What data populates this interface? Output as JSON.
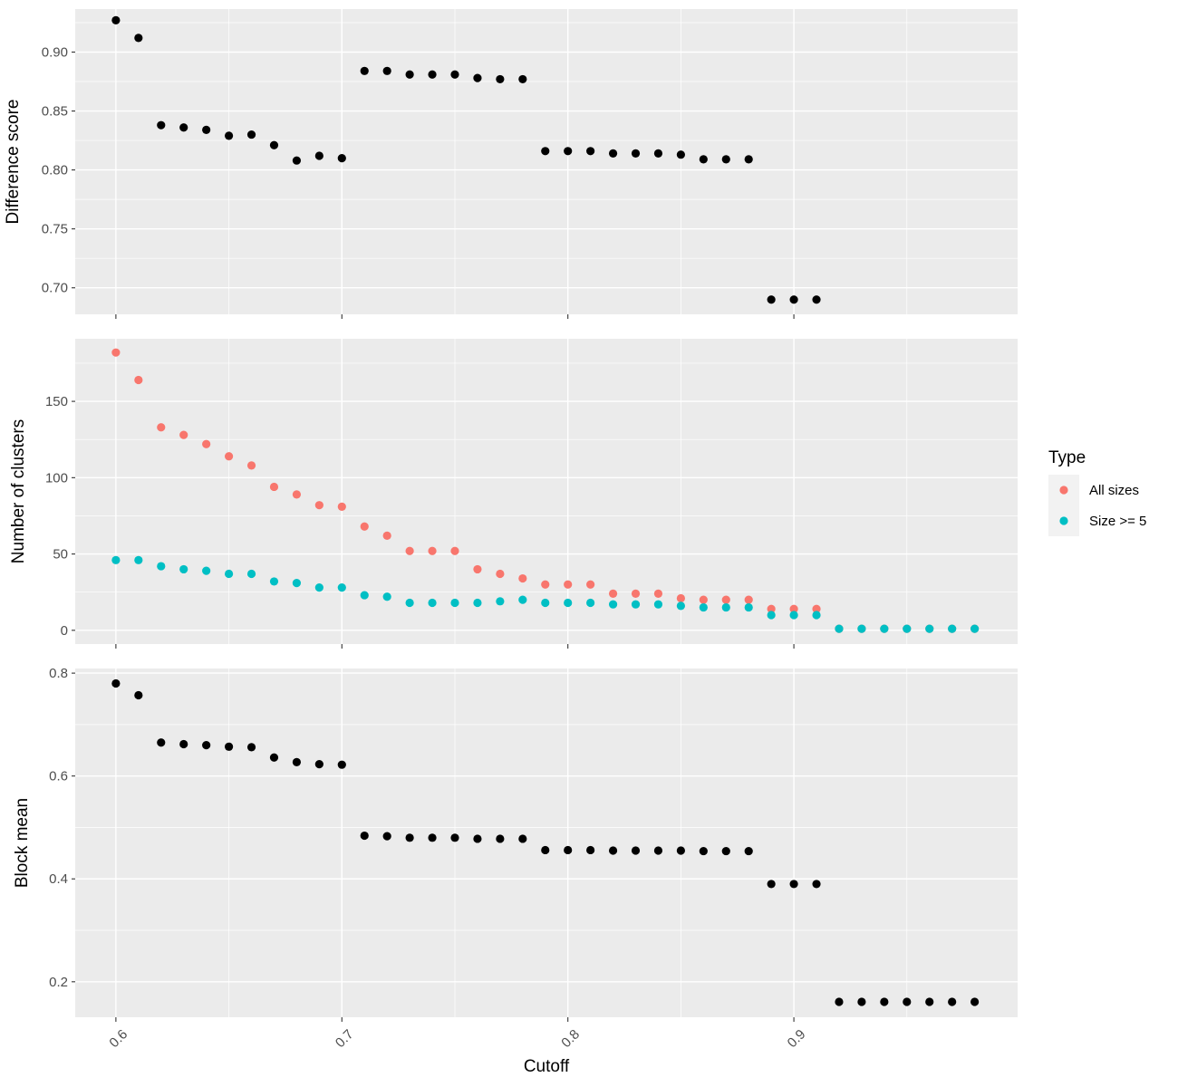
{
  "chart_data": {
    "type": "scatter",
    "xlabel": "Cutoff",
    "x_ticks": [
      0.6,
      0.7,
      0.8,
      0.9
    ],
    "xlim": [
      0.582,
      0.999
    ],
    "colors": {
      "black": "#000000",
      "All sizes": "#F8766D",
      "Size >= 5": "#00BFC4"
    },
    "legend": {
      "title": "Type",
      "position": "right",
      "entries": [
        {
          "label": "All sizes",
          "color": "#F8766D"
        },
        {
          "label": "Size >= 5",
          "color": "#00BFC4"
        }
      ]
    },
    "panels": [
      {
        "ylabel": "Difference score",
        "ylim": [
          0.6775,
          0.9365
        ],
        "y_ticks": [
          0.7,
          0.75,
          0.8,
          0.85,
          0.9
        ],
        "y_tick_labels": [
          "0.70",
          "0.75",
          "0.80",
          "0.85",
          "0.90"
        ],
        "series": [
          {
            "color": "#000000",
            "x": [
              0.6,
              0.61,
              0.62,
              0.63,
              0.64,
              0.65,
              0.66,
              0.67,
              0.68,
              0.69,
              0.7,
              0.71,
              0.72,
              0.73,
              0.74,
              0.75,
              0.76,
              0.77,
              0.78,
              0.79,
              0.8,
              0.81,
              0.82,
              0.83,
              0.84,
              0.85,
              0.86,
              0.87,
              0.88,
              0.89,
              0.9,
              0.91
            ],
            "y": [
              0.927,
              0.912,
              0.838,
              0.836,
              0.834,
              0.829,
              0.83,
              0.821,
              0.808,
              0.812,
              0.81,
              0.884,
              0.884,
              0.881,
              0.881,
              0.881,
              0.878,
              0.877,
              0.877,
              0.816,
              0.816,
              0.816,
              0.814,
              0.814,
              0.814,
              0.813,
              0.809,
              0.809,
              0.809,
              0.69,
              0.69,
              0.69
            ]
          }
        ]
      },
      {
        "ylabel": "Number of clusters",
        "ylim": [
          -9,
          191
        ],
        "y_ticks": [
          0,
          50,
          100,
          150
        ],
        "y_tick_labels": [
          "0",
          "50",
          "100",
          "150"
        ],
        "series": [
          {
            "name": "All sizes",
            "color": "#F8766D",
            "x": [
              0.6,
              0.61,
              0.62,
              0.63,
              0.64,
              0.65,
              0.66,
              0.67,
              0.68,
              0.69,
              0.7,
              0.71,
              0.72,
              0.73,
              0.74,
              0.75,
              0.76,
              0.77,
              0.78,
              0.79,
              0.8,
              0.81,
              0.82,
              0.83,
              0.84,
              0.85,
              0.86,
              0.87,
              0.88,
              0.89,
              0.9,
              0.91,
              0.92,
              0.93,
              0.94,
              0.95,
              0.96,
              0.97,
              0.98
            ],
            "y": [
              182,
              164,
              133,
              128,
              122,
              114,
              108,
              94,
              89,
              82,
              81,
              68,
              62,
              52,
              52,
              52,
              40,
              37,
              34,
              30,
              30,
              30,
              24,
              24,
              24,
              21,
              20,
              20,
              20,
              14,
              14,
              14,
              1,
              1,
              1,
              1,
              1,
              1,
              1
            ]
          },
          {
            "name": "Size >= 5",
            "color": "#00BFC4",
            "x": [
              0.6,
              0.61,
              0.62,
              0.63,
              0.64,
              0.65,
              0.66,
              0.67,
              0.68,
              0.69,
              0.7,
              0.71,
              0.72,
              0.73,
              0.74,
              0.75,
              0.76,
              0.77,
              0.78,
              0.79,
              0.8,
              0.81,
              0.82,
              0.83,
              0.84,
              0.85,
              0.86,
              0.87,
              0.88,
              0.89,
              0.9,
              0.91,
              0.92,
              0.93,
              0.94,
              0.95,
              0.96,
              0.97,
              0.98
            ],
            "y": [
              46,
              46,
              42,
              40,
              39,
              37,
              37,
              32,
              31,
              28,
              28,
              23,
              22,
              18,
              18,
              18,
              18,
              19,
              20,
              18,
              18,
              18,
              17,
              17,
              17,
              16,
              15,
              15,
              15,
              10,
              10,
              10,
              1,
              1,
              1,
              1,
              1,
              1,
              1
            ]
          }
        ]
      },
      {
        "ylabel": "Block mean",
        "ylim": [
          0.131,
          0.809
        ],
        "y_ticks": [
          0.2,
          0.4,
          0.6,
          0.8
        ],
        "y_tick_labels": [
          "0.2",
          "0.4",
          "0.6",
          "0.8"
        ],
        "series": [
          {
            "color": "#000000",
            "x": [
              0.6,
              0.61,
              0.62,
              0.63,
              0.64,
              0.65,
              0.66,
              0.67,
              0.68,
              0.69,
              0.7,
              0.71,
              0.72,
              0.73,
              0.74,
              0.75,
              0.76,
              0.77,
              0.78,
              0.79,
              0.8,
              0.81,
              0.82,
              0.83,
              0.84,
              0.85,
              0.86,
              0.87,
              0.88,
              0.89,
              0.9,
              0.91,
              0.92,
              0.93,
              0.94,
              0.95,
              0.96,
              0.97,
              0.98
            ],
            "y": [
              0.78,
              0.757,
              0.665,
              0.662,
              0.66,
              0.657,
              0.656,
              0.636,
              0.627,
              0.623,
              0.622,
              0.484,
              0.483,
              0.48,
              0.48,
              0.48,
              0.478,
              0.478,
              0.478,
              0.456,
              0.456,
              0.456,
              0.455,
              0.455,
              0.455,
              0.455,
              0.454,
              0.454,
              0.454,
              0.39,
              0.39,
              0.39,
              0.161,
              0.161,
              0.161,
              0.161,
              0.161,
              0.161,
              0.161
            ]
          }
        ]
      }
    ]
  }
}
